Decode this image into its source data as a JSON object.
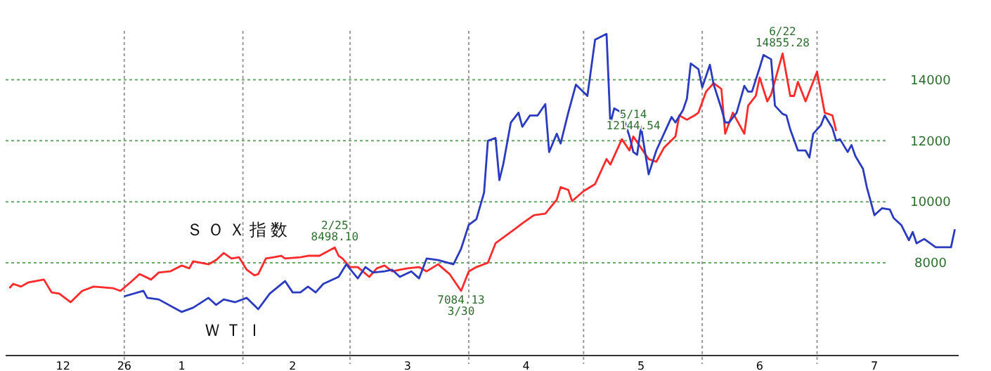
{
  "chart_data": {
    "type": "line",
    "xlim": [
      "2025-12-01",
      "2026-08-07"
    ],
    "ylim": [
      4960,
      15600
    ],
    "xticks": [
      {
        "value": "2025-12-16",
        "label": "12"
      },
      {
        "value": "2026-01-01",
        "label": "26"
      },
      {
        "value": "2026-01-16",
        "label": "1"
      },
      {
        "value": "2026-02-14",
        "label": "2"
      },
      {
        "value": "2026-03-16",
        "label": "3"
      },
      {
        "value": "2026-04-16",
        "label": "4"
      },
      {
        "value": "2026-05-16",
        "label": "5"
      },
      {
        "value": "2026-06-16",
        "label": "6"
      },
      {
        "value": "2026-07-16",
        "label": "7"
      }
    ],
    "yticks": [
      8000,
      10000,
      12000,
      14000
    ],
    "grid": "y",
    "legend": false,
    "marker": "none",
    "line_style": "solid",
    "ref_lines": [
      {
        "axis": "x",
        "value": "2026-01-01",
        "color": "#999999",
        "line_style": "dotted"
      },
      {
        "axis": "x",
        "value": "2026-02-01",
        "color": "#999999",
        "line_style": "dotted"
      },
      {
        "axis": "x",
        "value": "2026-03-01",
        "color": "#999999",
        "line_style": "dotted"
      },
      {
        "axis": "x",
        "value": "2026-04-01",
        "color": "#999999",
        "line_style": "dotted"
      },
      {
        "axis": "x",
        "value": "2026-05-01",
        "color": "#999999",
        "line_style": "dotted"
      },
      {
        "axis": "x",
        "value": "2026-06-01",
        "color": "#999999",
        "line_style": "dotted"
      },
      {
        "axis": "x",
        "value": "2026-07-01",
        "color": "#999999",
        "line_style": "dotted"
      }
    ],
    "annotations": [
      {
        "text": "2/25 8498.10",
        "x": "2026-02-25",
        "y": 8498.1
      },
      {
        "text": "7084.13 3/30",
        "x": "2026-03-30",
        "y": 7084.13
      },
      {
        "text": "5/14 12144.54",
        "x": "2026-05-14",
        "y": 12144.54
      },
      {
        "text": "6/22 14855.28",
        "x": "2026-06-22",
        "y": 14855.28
      }
    ],
    "series": [
      {
        "name": "ＳＯＸ指数",
        "color": "#ff2a2a",
        "x": [
          "2025-12-02",
          "2025-12-03",
          "2025-12-05",
          "2025-12-07",
          "2025-12-11",
          "2025-12-13",
          "2025-12-15",
          "2025-12-18",
          "2025-12-21",
          "2025-12-24",
          "2025-12-29",
          "2025-12-31",
          "2026-01-03",
          "2026-01-05",
          "2026-01-08",
          "2026-01-10",
          "2026-01-13",
          "2026-01-16",
          "2026-01-18",
          "2026-01-19",
          "2026-01-23",
          "2026-01-25",
          "2026-01-27",
          "2026-01-29",
          "2026-01-31",
          "2026-02-02",
          "2026-02-04",
          "2026-02-05",
          "2026-02-07",
          "2026-02-09",
          "2026-02-11",
          "2026-02-12",
          "2026-02-16",
          "2026-02-18",
          "2026-02-21",
          "2026-02-25",
          "2026-02-26",
          "2026-02-27",
          "2026-03-01",
          "2026-03-03",
          "2026-03-06",
          "2026-03-08",
          "2026-03-10",
          "2026-03-12",
          "2026-03-14",
          "2026-03-16",
          "2026-03-19",
          "2026-03-21",
          "2026-03-24",
          "2026-03-27",
          "2026-03-30",
          "2026-04-01",
          "2026-04-03",
          "2026-04-06",
          "2026-04-08",
          "2026-04-11",
          "2026-04-13",
          "2026-04-15",
          "2026-04-18",
          "2026-04-21",
          "2026-04-24",
          "2026-04-25",
          "2026-04-27",
          "2026-04-28",
          "2026-05-01",
          "2026-05-04",
          "2026-05-07",
          "2026-05-08",
          "2026-05-11",
          "2026-05-13",
          "2026-05-14",
          "2026-05-18",
          "2026-05-20",
          "2026-05-22",
          "2026-05-25",
          "2026-05-26",
          "2026-05-28",
          "2026-05-30",
          "2026-05-31",
          "2026-06-02",
          "2026-06-04",
          "2026-06-06",
          "2026-06-07",
          "2026-06-09",
          "2026-06-12",
          "2026-06-13",
          "2026-06-15",
          "2026-06-16",
          "2026-06-18",
          "2026-06-19",
          "2026-06-22",
          "2026-06-24",
          "2026-06-25",
          "2026-06-26",
          "2026-06-28",
          "2026-07-01",
          "2026-07-03",
          "2026-07-05",
          "2026-07-06"
        ],
        "values": [
          7170,
          7310,
          7220,
          7360,
          7450,
          7030,
          6990,
          6710,
          7080,
          7220,
          7170,
          7080,
          7400,
          7630,
          7450,
          7680,
          7720,
          7910,
          7820,
          8050,
          7950,
          8090,
          8320,
          8140,
          8180,
          7770,
          7590,
          7630,
          8140,
          8180,
          8230,
          8140,
          8180,
          8230,
          8230,
          8500,
          8230,
          8140,
          7860,
          7860,
          7540,
          7820,
          7910,
          7720,
          7770,
          7820,
          7860,
          7720,
          7950,
          7630,
          7080,
          7720,
          7860,
          8000,
          8640,
          8920,
          9100,
          9290,
          9560,
          9610,
          10070,
          10480,
          10390,
          10020,
          10350,
          10580,
          11400,
          11220,
          12050,
          11680,
          12140,
          11400,
          11310,
          11770,
          12140,
          12830,
          12690,
          12830,
          12920,
          13610,
          13890,
          13700,
          12230,
          12920,
          12230,
          13150,
          13470,
          14070,
          13290,
          13520,
          14860,
          13470,
          13470,
          13930,
          13290,
          14260,
          12920,
          12830,
          12320
        ]
      },
      {
        "name": "ＷＴＩ",
        "color": "#2b3bc0",
        "x": [
          "2026-01-01",
          "2026-01-06",
          "2026-01-07",
          "2026-01-10",
          "2026-01-16",
          "2026-01-19",
          "2026-01-23",
          "2026-01-25",
          "2026-01-27",
          "2026-01-30",
          "2026-02-02",
          "2026-02-05",
          "2026-02-08",
          "2026-02-12",
          "2026-02-14",
          "2026-02-16",
          "2026-02-18",
          "2026-02-20",
          "2026-02-22",
          "2026-02-26",
          "2026-02-28",
          "2026-03-03",
          "2026-03-05",
          "2026-03-07",
          "2026-03-10",
          "2026-03-12",
          "2026-03-14",
          "2026-03-17",
          "2026-03-19",
          "2026-03-21",
          "2026-03-24",
          "2026-03-28",
          "2026-03-30",
          "2026-04-01",
          "2026-04-03",
          "2026-04-05",
          "2026-04-06",
          "2026-04-08",
          "2026-04-09",
          "2026-04-10",
          "2026-04-12",
          "2026-04-14",
          "2026-04-15",
          "2026-04-17",
          "2026-04-19",
          "2026-04-21",
          "2026-04-22",
          "2026-04-24",
          "2026-04-25",
          "2026-04-27",
          "2026-04-29",
          "2026-05-02",
          "2026-05-04",
          "2026-05-07",
          "2026-05-08",
          "2026-05-09",
          "2026-05-11",
          "2026-05-13",
          "2026-05-14",
          "2026-05-15",
          "2026-05-16",
          "2026-05-18",
          "2026-05-20",
          "2026-05-22",
          "2026-05-24",
          "2026-05-25",
          "2026-05-27",
          "2026-05-28",
          "2026-05-29",
          "2026-05-31",
          "2026-06-01",
          "2026-06-03",
          "2026-06-04",
          "2026-06-06",
          "2026-06-07",
          "2026-06-08",
          "2026-06-10",
          "2026-06-12",
          "2026-06-13",
          "2026-06-14",
          "2026-06-16",
          "2026-06-17",
          "2026-06-19",
          "2026-06-20",
          "2026-06-22",
          "2026-06-23",
          "2026-06-24",
          "2026-06-26",
          "2026-06-28",
          "2026-06-29",
          "2026-06-30",
          "2026-07-02",
          "2026-07-03",
          "2026-07-05",
          "2026-07-06",
          "2026-07-07",
          "2026-07-09",
          "2026-07-10",
          "2026-07-11",
          "2026-07-13",
          "2026-07-14",
          "2026-07-16",
          "2026-07-18",
          "2026-07-20",
          "2026-07-21",
          "2026-07-23",
          "2026-07-25",
          "2026-07-26",
          "2026-07-27",
          "2026-07-29",
          "2026-08-01",
          "2026-08-03",
          "2026-08-05",
          "2026-08-06"
        ],
        "values": [
          6900,
          7080,
          6850,
          6800,
          6390,
          6530,
          6850,
          6620,
          6800,
          6710,
          6850,
          6480,
          6990,
          7400,
          7030,
          7030,
          7220,
          7030,
          7310,
          7540,
          7950,
          7490,
          7860,
          7680,
          7720,
          7770,
          7540,
          7720,
          7490,
          8140,
          8090,
          7950,
          8460,
          9240,
          9430,
          10300,
          12000,
          12090,
          10710,
          11220,
          12600,
          12920,
          12460,
          12830,
          12830,
          13200,
          11630,
          12230,
          11910,
          12920,
          13840,
          13470,
          15310,
          15500,
          12550,
          13060,
          12920,
          12140,
          11630,
          11540,
          12460,
          10900,
          11680,
          12230,
          12780,
          12600,
          13010,
          13380,
          14530,
          14350,
          13750,
          14490,
          13840,
          13060,
          12600,
          12600,
          12920,
          13800,
          13610,
          13610,
          14390,
          14810,
          14670,
          13150,
          12880,
          12830,
          12370,
          11680,
          11680,
          11450,
          12230,
          12510,
          12830,
          12420,
          12000,
          12050,
          11630,
          11860,
          11500,
          11080,
          10480,
          9560,
          9790,
          9750,
          9470,
          9240,
          8740,
          9010,
          8640,
          8780,
          8510,
          8510,
          8510,
          9100
        ]
      }
    ]
  }
}
